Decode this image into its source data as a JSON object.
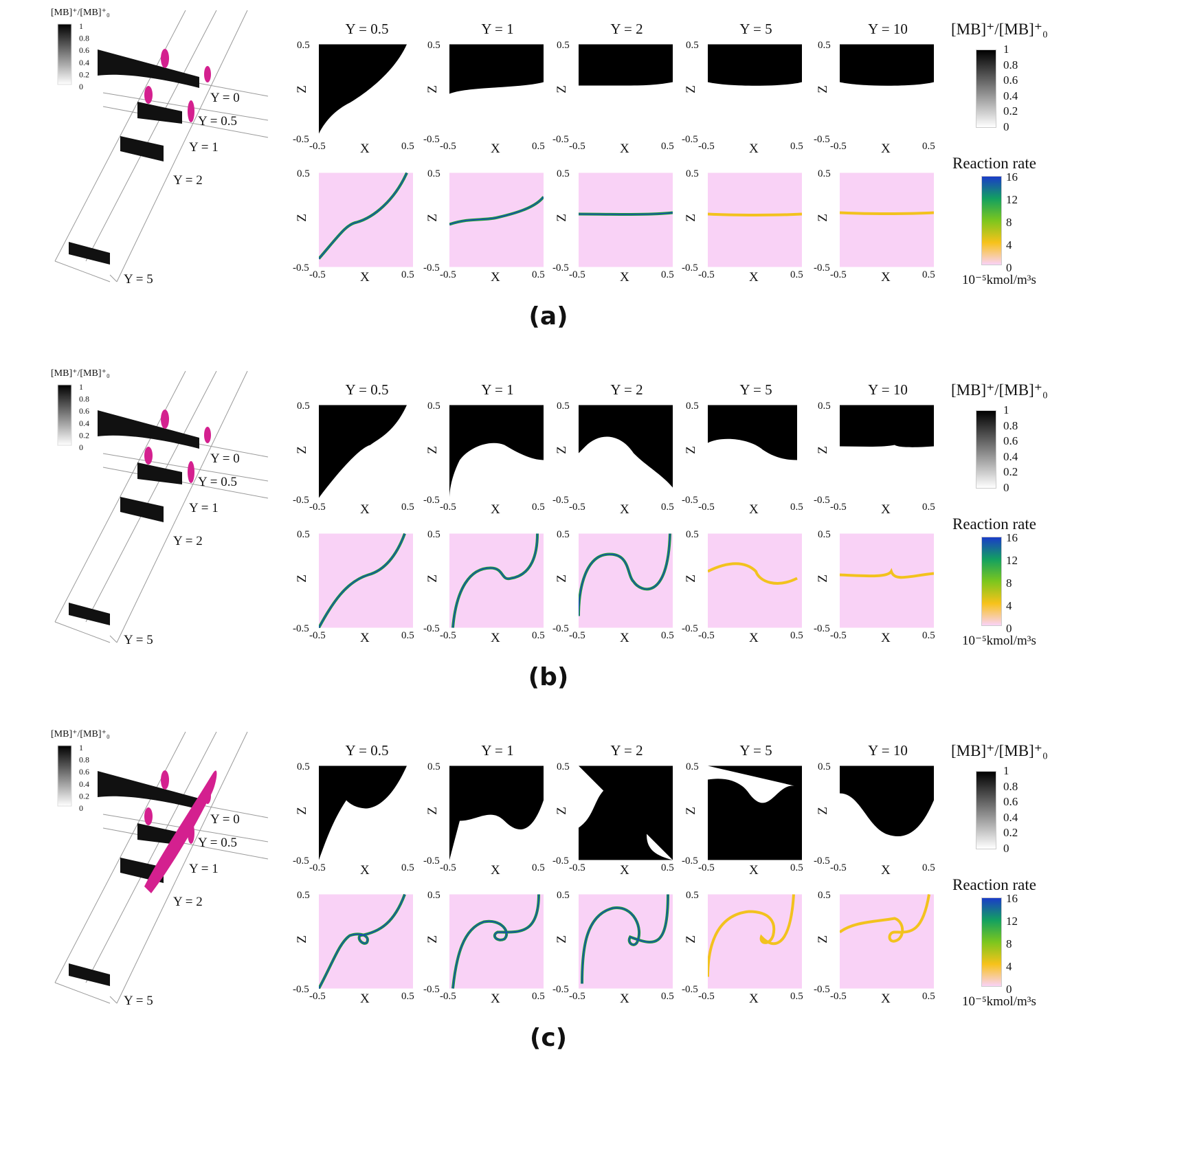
{
  "figure": {
    "legend_small_title": "[MB]⁺/[MB]⁺₀",
    "legend_small_ticks": [
      "1",
      "0.8",
      "0.6",
      "0.4",
      "0.2",
      "0"
    ],
    "iso_labels": [
      "Y = 0",
      "Y = 0.5",
      "Y = 1",
      "Y = 2",
      "Y = 5"
    ],
    "column_titles": [
      "Y = 0.5",
      "Y = 1",
      "Y = 2",
      "Y = 5",
      "Y = 10"
    ],
    "axis": {
      "x_label": "X",
      "z_label": "Z",
      "x_min": "-0.5",
      "x_max": "0.5",
      "z_min": "-0.5",
      "z_max": "0.5"
    },
    "concentration_colorbar": {
      "title": "[MB]⁺/[MB]⁺₀",
      "ticks": [
        "1",
        "0.8",
        "0.6",
        "0.4",
        "0.2",
        "0"
      ],
      "colors": [
        "#000000",
        "#ffffff"
      ]
    },
    "reaction_colorbar": {
      "title": "Reaction rate",
      "ticks": [
        "16",
        "12",
        "8",
        "4",
        "0"
      ],
      "unit": "10⁻⁵kmol/m³s",
      "colors": [
        "#1a3cc8",
        "#13a060",
        "#7cc61e",
        "#f7c21a",
        "#f9d2f6"
      ]
    },
    "rows": [
      {
        "caption": "(a)"
      },
      {
        "caption": "(b)"
      },
      {
        "caption": "(c)"
      }
    ]
  }
}
